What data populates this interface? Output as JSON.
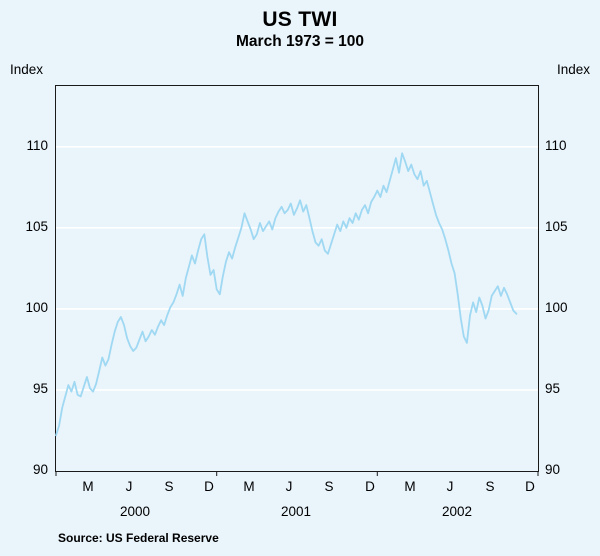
{
  "title": "US TWI",
  "subtitle": "March 1973 = 100",
  "source": "Source: US Federal Reserve",
  "axis": {
    "left_unit_label": "Index",
    "right_unit_label": "Index",
    "y_ticks": [
      110,
      105,
      100,
      95,
      90
    ],
    "y_min": 90,
    "y_max": 113.75,
    "x_total_months": 36,
    "x_ticks": [
      {
        "label": "M",
        "month": 2.5
      },
      {
        "label": "J",
        "month": 5.5
      },
      {
        "label": "S",
        "month": 8.5
      },
      {
        "label": "D",
        "month": 11.5
      },
      {
        "label": "M",
        "month": 14.5
      },
      {
        "label": "J",
        "month": 17.5
      },
      {
        "label": "S",
        "month": 20.5
      },
      {
        "label": "D",
        "month": 23.5
      },
      {
        "label": "M",
        "month": 26.5
      },
      {
        "label": "J",
        "month": 29.5
      },
      {
        "label": "S",
        "month": 32.5
      },
      {
        "label": "D",
        "month": 35.5
      }
    ],
    "year_labels": [
      {
        "label": "2000",
        "month": 6
      },
      {
        "label": "2001",
        "month": 18
      },
      {
        "label": "2002",
        "month": 30
      }
    ],
    "year_tick_months": [
      0,
      12,
      24,
      36
    ]
  },
  "colors": {
    "background": "#e9f4fb",
    "line": "#9fd8f2",
    "grid": "#ffffff",
    "frame": "#1a1a1a",
    "text": "#000000"
  },
  "chart_data": {
    "type": "line",
    "title": "US TWI",
    "subtitle": "March 1973 = 100",
    "ylabel": "Index",
    "ylim": [
      90,
      110
    ],
    "grid": "horizontal",
    "legend": "none",
    "x_domain_weeks": 156,
    "x_range": "Jan 2000 to Nov 2002 (weekly observations)",
    "series": [
      {
        "name": "US TWI (March 1973 = 100)",
        "values": [
          92.2,
          92.8,
          93.9,
          94.6,
          95.3,
          94.9,
          95.5,
          94.7,
          94.6,
          95.2,
          95.8,
          95.1,
          94.9,
          95.4,
          96.2,
          97.0,
          96.5,
          96.9,
          97.8,
          98.6,
          99.2,
          99.5,
          99.0,
          98.2,
          97.7,
          97.4,
          97.6,
          98.1,
          98.6,
          98.0,
          98.3,
          98.7,
          98.4,
          98.9,
          99.3,
          99.0,
          99.6,
          100.1,
          100.4,
          100.9,
          101.5,
          100.8,
          101.9,
          102.6,
          103.3,
          102.8,
          103.6,
          104.3,
          104.6,
          103.2,
          102.1,
          102.4,
          101.2,
          100.9,
          102.0,
          102.9,
          103.5,
          103.1,
          103.8,
          104.4,
          105.0,
          105.9,
          105.4,
          104.9,
          104.3,
          104.6,
          105.3,
          104.8,
          105.1,
          105.4,
          104.9,
          105.6,
          106.0,
          106.3,
          105.9,
          106.1,
          106.5,
          105.8,
          106.2,
          106.7,
          106.0,
          106.4,
          105.6,
          104.8,
          104.1,
          103.9,
          104.3,
          103.6,
          103.4,
          104.0,
          104.6,
          105.2,
          104.8,
          105.4,
          105.0,
          105.6,
          105.3,
          105.9,
          105.5,
          106.1,
          106.4,
          105.9,
          106.6,
          106.9,
          107.3,
          106.9,
          107.6,
          107.2,
          107.9,
          108.6,
          109.3,
          108.4,
          109.6,
          109.1,
          108.5,
          108.9,
          108.3,
          108.0,
          108.5,
          107.6,
          107.9,
          107.2,
          106.5,
          105.8,
          105.3,
          104.9,
          104.3,
          103.6,
          102.8,
          102.2,
          100.9,
          99.4,
          98.3,
          97.9,
          99.6,
          100.4,
          99.8,
          100.7,
          100.2,
          99.4,
          99.9,
          100.8,
          101.1,
          101.4,
          100.8,
          101.3,
          100.9,
          100.4,
          99.9,
          99.7
        ]
      }
    ]
  }
}
